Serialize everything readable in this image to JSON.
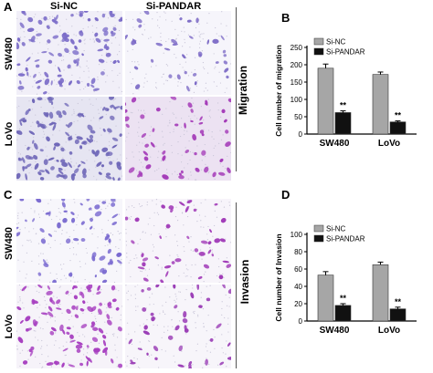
{
  "panels": {
    "A": "A",
    "B": "B",
    "C": "C",
    "D": "D"
  },
  "micrographs": {
    "col_si_nc": "Si-NC",
    "col_si_pandar": "Si-PANDAR",
    "row_sw480": "SW480",
    "row_lovo": "LoVo",
    "side_migration": "Migration",
    "side_invasion": "Invasion"
  },
  "colors": {
    "bar_si_nc": "#a6a6a6",
    "bar_si_pandar": "#111111",
    "stain_light": "#8a7fd0",
    "stain_dark": "#9b3fb5"
  },
  "chart_data": [
    {
      "type": "bar",
      "panel": "B",
      "categories": [
        "SW480",
        "LoVo"
      ],
      "series": [
        {
          "name": "Si-NC",
          "values": [
            190,
            172
          ],
          "errors": [
            12,
            7
          ]
        },
        {
          "name": "Si-PANDAR",
          "values": [
            62,
            35
          ],
          "errors": [
            5,
            3
          ]
        }
      ],
      "significance": [
        "**",
        "**"
      ],
      "ylabel": "Cell number of migration",
      "ylim": [
        0,
        250
      ],
      "yticks": [
        0,
        50,
        100,
        150,
        200,
        250
      ],
      "legend": "top-center"
    },
    {
      "type": "bar",
      "panel": "D",
      "categories": [
        "SW480",
        "LoVo"
      ],
      "series": [
        {
          "name": "Si-NC",
          "values": [
            53,
            65
          ],
          "errors": [
            4,
            3
          ]
        },
        {
          "name": "Si-PANDAR",
          "values": [
            18,
            14
          ],
          "errors": [
            2,
            2
          ]
        }
      ],
      "significance": [
        "**",
        "**"
      ],
      "ylabel": "Cell number of Invasion",
      "ylim": [
        0,
        100
      ],
      "yticks": [
        0,
        20,
        40,
        60,
        80,
        100
      ],
      "legend": "top-center"
    }
  ]
}
